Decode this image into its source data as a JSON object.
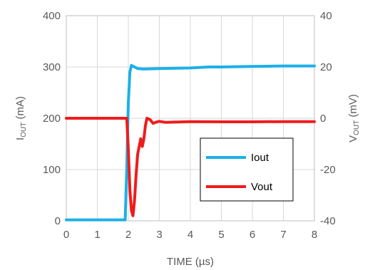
{
  "chart_data": {
    "type": "line",
    "title": "",
    "xlabel": "TIME (µs)",
    "ylabel_left": {
      "main": "I",
      "sub": "OUT",
      "unit": " (mA)"
    },
    "ylabel_right": {
      "main": "V",
      "sub": "OUT",
      "unit": " (mV)"
    },
    "xlim": [
      0,
      8
    ],
    "ylim_left": [
      0,
      400
    ],
    "ylim_right": [
      -40,
      40
    ],
    "x_ticks": [
      "0",
      "1",
      "2",
      "3",
      "4",
      "5",
      "6",
      "7",
      "8"
    ],
    "y_left_ticks": [
      "0",
      "100",
      "200",
      "300",
      "400"
    ],
    "y_right_ticks": [
      "-40",
      "-20",
      "0",
      "20",
      "40"
    ],
    "grid": true,
    "legend_position": "lower-right",
    "series": [
      {
        "name": "Iout",
        "axis": "left",
        "color": "#1CB0E8",
        "x": [
          0,
          1.9,
          1.95,
          2.0,
          2.05,
          2.1,
          2.2,
          2.3,
          2.5,
          3.0,
          4.0,
          4.6,
          5.0,
          6.0,
          7.0,
          8.0
        ],
        "y": [
          2,
          2,
          100,
          230,
          290,
          303,
          300,
          297,
          296,
          297,
          298,
          300,
          300,
          301,
          302,
          302
        ]
      },
      {
        "name": "Vout",
        "axis": "right",
        "color": "#EE1C1C",
        "x": [
          0,
          1.95,
          2.0,
          2.05,
          2.1,
          2.15,
          2.2,
          2.25,
          2.3,
          2.4,
          2.45,
          2.5,
          2.55,
          2.6,
          2.7,
          2.8,
          2.9,
          3.0,
          3.2,
          3.5,
          4.0,
          5.0,
          6.0,
          7.0,
          8.0
        ],
        "y": [
          0,
          0,
          -12,
          -28,
          -36,
          -38,
          -32,
          -22,
          -14,
          -8,
          -11,
          -8,
          -3,
          0,
          -0.5,
          -2,
          -1.5,
          -1.2,
          -1.6,
          -1.5,
          -1.3,
          -1.4,
          -1.4,
          -1.3,
          -1.3
        ]
      }
    ]
  }
}
